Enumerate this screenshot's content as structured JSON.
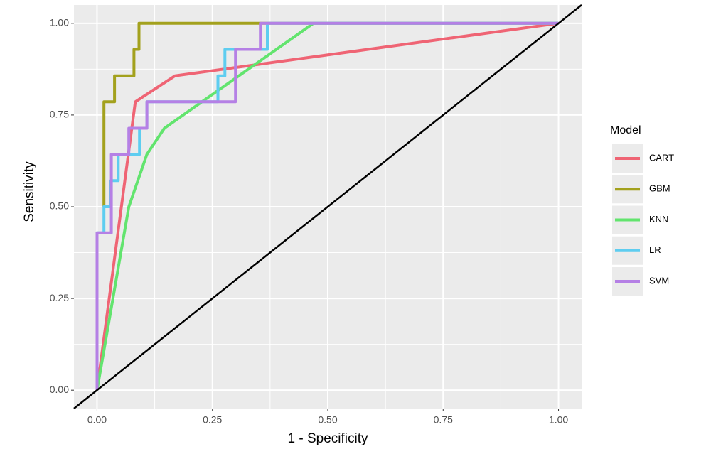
{
  "chart_data": {
    "type": "line",
    "x_label": "1 - Specificity",
    "y_label": "Sensitivity",
    "legend_title": "Model",
    "xlim": [
      -0.05,
      1.05
    ],
    "ylim": [
      -0.05,
      1.05
    ],
    "xticks": [
      {
        "value": 0,
        "label": "0.00"
      },
      {
        "value": 0.25,
        "label": "0.25"
      },
      {
        "value": 0.5,
        "label": "0.50"
      },
      {
        "value": 0.75,
        "label": "0.75"
      },
      {
        "value": 1,
        "label": "1.00"
      }
    ],
    "yticks": [
      {
        "value": 0,
        "label": "0.00"
      },
      {
        "value": 0.25,
        "label": "0.25"
      },
      {
        "value": 0.5,
        "label": "0.50"
      },
      {
        "value": 0.75,
        "label": "0.75"
      },
      {
        "value": 1,
        "label": "1.00"
      }
    ],
    "grid": true,
    "legend": "right",
    "series": [
      {
        "name": "CART",
        "color": "#ef6474",
        "x": [
          0,
          0.083,
          0.169,
          1
        ],
        "values": [
          0,
          0.786,
          0.857,
          1
        ]
      },
      {
        "name": "GBM",
        "color": "#a3a11d",
        "x": [
          0.015,
          0.015,
          0.038,
          0.038,
          0.08,
          0.08,
          0.091,
          0.091,
          1
        ],
        "values": [
          0.5,
          0.786,
          0.786,
          0.857,
          0.857,
          0.929,
          0.929,
          1,
          1
        ]
      },
      {
        "name": "KNN",
        "color": "#62e46e",
        "x": [
          0,
          0.069,
          0.108,
          0.146,
          0.469,
          1
        ],
        "values": [
          0,
          0.5,
          0.643,
          0.714,
          1,
          1
        ]
      },
      {
        "name": "LR",
        "color": "#5ecdf0",
        "x": [
          0,
          0,
          0.015,
          0.015,
          0.03,
          0.03,
          0.046,
          0.046,
          0.092,
          0.092,
          0.108,
          0.108,
          0.262,
          0.262,
          0.277,
          0.277,
          0.369,
          0.369,
          1
        ],
        "values": [
          0,
          0.429,
          0.429,
          0.5,
          0.5,
          0.571,
          0.571,
          0.643,
          0.643,
          0.714,
          0.714,
          0.786,
          0.786,
          0.857,
          0.857,
          0.929,
          0.929,
          1,
          1
        ]
      },
      {
        "name": "SVM",
        "color": "#b580e5",
        "x": [
          0,
          0,
          0.031,
          0.031,
          0.069,
          0.069,
          0.108,
          0.108,
          0.3,
          0.3,
          0.354,
          0.354,
          1
        ],
        "values": [
          0,
          0.429,
          0.429,
          0.643,
          0.643,
          0.714,
          0.714,
          0.786,
          0.786,
          0.929,
          0.929,
          1,
          1
        ]
      }
    ]
  }
}
